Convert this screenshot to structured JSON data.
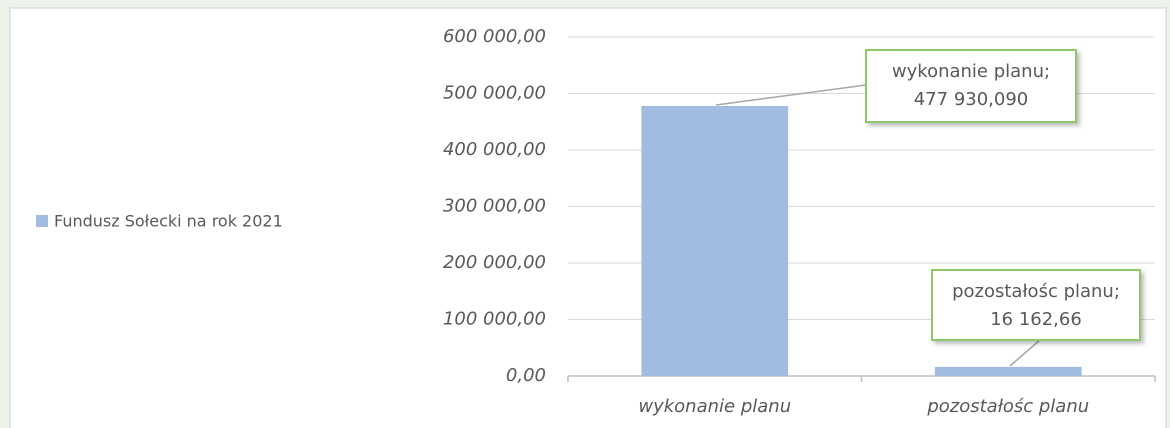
{
  "chart_data": {
    "type": "bar",
    "categories": [
      "wykonanie planu",
      "pozostałośc planu"
    ],
    "series": [
      {
        "name": "Fundusz Sołecki na rok 2021",
        "color": "#a2bbe0",
        "values": [
          477930.09,
          16162.66
        ],
        "value_labels": [
          "477 930,090",
          "16 162,66"
        ]
      }
    ],
    "label_separator": ";",
    "ylim": [
      0,
      600000
    ],
    "yticks": [
      {
        "value": 0,
        "label": "0,00"
      },
      {
        "value": 100000,
        "label": "100 000,00"
      },
      {
        "value": 200000,
        "label": "200 000,00"
      },
      {
        "value": 300000,
        "label": "300 000,00"
      },
      {
        "value": 400000,
        "label": "400 000,00"
      },
      {
        "value": 500000,
        "label": "500 000,00"
      },
      {
        "value": 600000,
        "label": "600 000,00"
      }
    ],
    "grid": true,
    "legend": "left"
  }
}
